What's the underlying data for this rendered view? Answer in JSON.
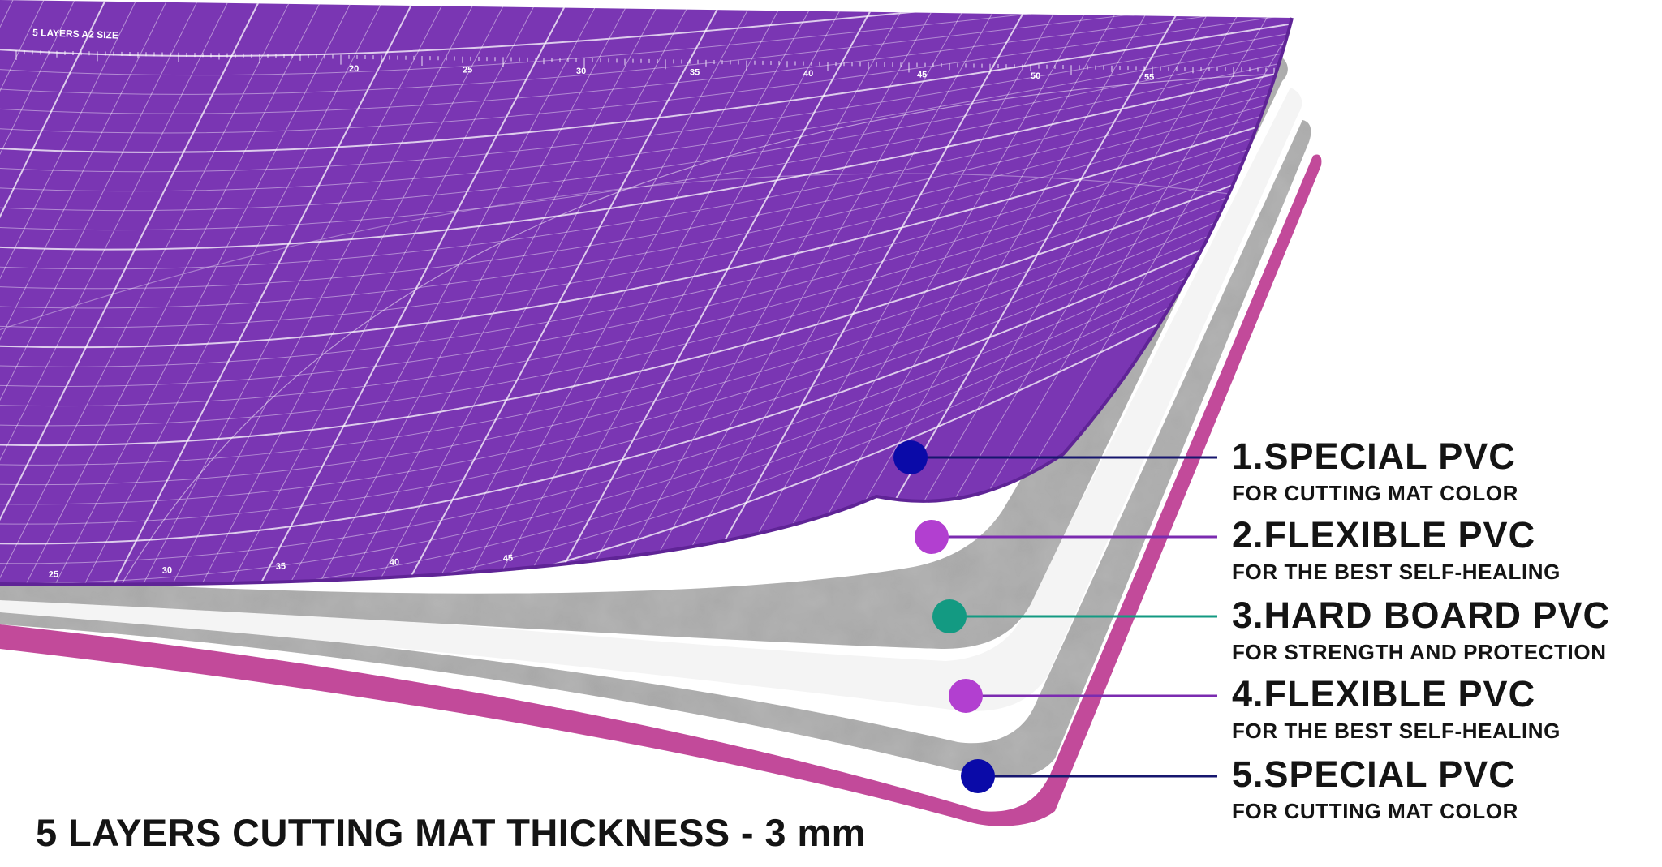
{
  "layers": [
    {
      "number": 1,
      "title": "1.SPECIAL PVC",
      "subtitle": "FOR CUTTING MAT COLOR",
      "dot_color": "#0a0aa8",
      "line_color": "#16166e"
    },
    {
      "number": 2,
      "title": "2.FLEXIBLE PVC",
      "subtitle": "FOR THE BEST SELF-HEALING",
      "dot_color": "#b23fd0",
      "line_color": "#7b2bb0"
    },
    {
      "number": 3,
      "title": "3.HARD BOARD PVC",
      "subtitle": "FOR STRENGTH AND PROTECTION",
      "dot_color": "#139a82",
      "line_color": "#139a82"
    },
    {
      "number": 4,
      "title": "4.FLEXIBLE PVC",
      "subtitle": "FOR THE BEST SELF-HEALING",
      "dot_color": "#b23fd0",
      "line_color": "#7b2bb0"
    },
    {
      "number": 5,
      "title": "5.SPECIAL PVC",
      "subtitle": "FOR CUTTING MAT COLOR",
      "dot_color": "#0a0aa8",
      "line_color": "#16166e"
    }
  ],
  "caption": "5 LAYERS CUTTING MAT THICKNESS - 3 mm",
  "mat": {
    "top_text": "5 LAYERS   A2 SIZE",
    "scale_labels": [
      "20",
      "25",
      "30",
      "35",
      "40",
      "45",
      "50",
      "55"
    ],
    "bottom_labels": [
      "25",
      "30",
      "35",
      "40",
      "45"
    ],
    "colors": {
      "top_layer": "#7a36b3",
      "top_layer_edge": "#5f2496",
      "gray_layer": "#a7a7a7",
      "white_layer": "#f4f4f4",
      "bottom_layer": "#c24a9a"
    }
  }
}
